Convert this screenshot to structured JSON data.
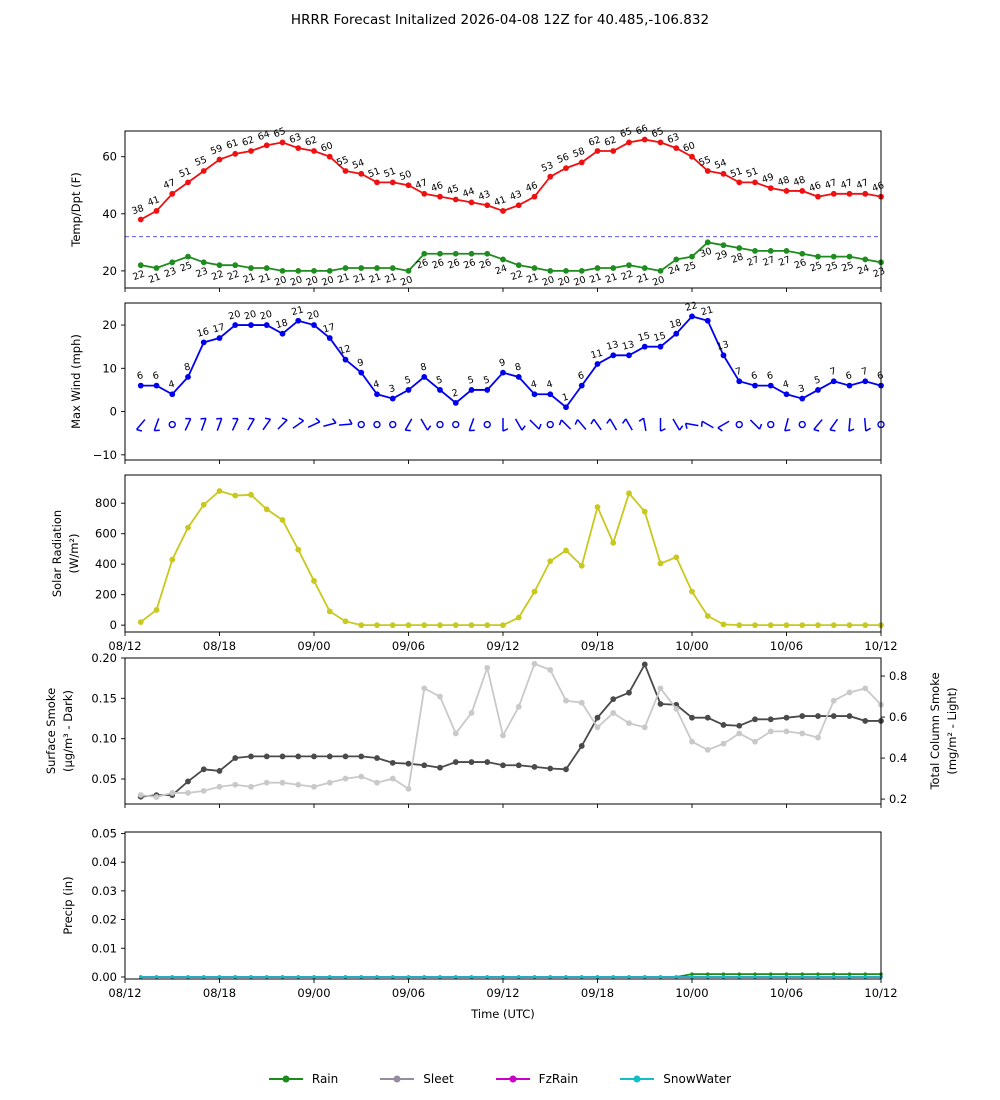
{
  "title": "HRRR Forecast Initalized 2026-04-08 12Z for 40.485,-106.832",
  "time_axis": {
    "n_points": 48,
    "tick_labels": [
      "08/12",
      "08/18",
      "09/00",
      "09/06",
      "09/12",
      "09/18",
      "10/00",
      "10/06",
      "10/12"
    ],
    "axis_label": "Time (UTC)"
  },
  "chart_data": [
    {
      "id": "temp",
      "type": "line",
      "ylabel": [
        "Temp/Dpt (F)"
      ],
      "ylim": [
        14,
        69
      ],
      "ytick_vals": [
        20,
        40,
        60
      ],
      "ytick_labels": [
        "20",
        "40",
        "60"
      ],
      "freezing_line": {
        "value": 32,
        "color": "#5a5af0"
      },
      "series": [
        {
          "name": "temperature",
          "color": "#ee1111",
          "point_labels": true,
          "values": [
            38,
            41,
            47,
            51,
            55,
            59,
            61,
            62,
            64,
            65,
            63,
            62,
            60,
            55,
            54,
            51,
            51,
            50,
            47,
            46,
            45,
            44,
            43,
            41,
            43,
            46,
            53,
            56,
            58,
            62,
            62,
            65,
            66,
            65,
            63,
            60,
            55,
            54,
            51,
            51,
            49,
            48,
            48,
            46,
            47,
            47,
            47,
            46
          ]
        },
        {
          "name": "dewpoint",
          "color": "#1e8c1e",
          "point_labels": true,
          "values": [
            22,
            21,
            23,
            25,
            23,
            22,
            22,
            21,
            21,
            20,
            20,
            20,
            20,
            21,
            21,
            21,
            21,
            20,
            26,
            26,
            26,
            26,
            26,
            24,
            22,
            21,
            20,
            20,
            20,
            21,
            21,
            22,
            21,
            20,
            24,
            25,
            30,
            29,
            28,
            27,
            27,
            27,
            26,
            25,
            25,
            25,
            24,
            23
          ]
        }
      ]
    },
    {
      "id": "wind",
      "type": "line",
      "ylabel": [
        "Max Wind (mph)"
      ],
      "ylim": [
        -11.2,
        25.1
      ],
      "ytick_vals": [
        -10,
        0,
        10,
        20
      ],
      "ytick_labels": [
        "−10",
        "0",
        "10",
        "20"
      ],
      "series": [
        {
          "name": "max_wind",
          "color": "#0000ee",
          "point_labels": true,
          "values": [
            6,
            6,
            4,
            8,
            16,
            17,
            20,
            20,
            20,
            18,
            21,
            20,
            17,
            12,
            9,
            4,
            3,
            5,
            8,
            5,
            2,
            5,
            5,
            9,
            8,
            4,
            4,
            1,
            6,
            11,
            13,
            13,
            15,
            15,
            18,
            22,
            21,
            13,
            7,
            6,
            6,
            4,
            3,
            5,
            7,
            6,
            7,
            6
          ]
        }
      ],
      "barbs": {
        "y": -3,
        "color": "#0000ee",
        "items": [
          {
            "t": "b",
            "a": 230
          },
          {
            "t": "b",
            "a": 250
          },
          {
            "t": "c"
          },
          {
            "t": "b",
            "a": 65
          },
          {
            "t": "b",
            "a": 70
          },
          {
            "t": "b",
            "a": 70
          },
          {
            "t": "b",
            "a": 65
          },
          {
            "t": "b",
            "a": 60
          },
          {
            "t": "b",
            "a": 55
          },
          {
            "t": "b",
            "a": 45
          },
          {
            "t": "b",
            "a": 35
          },
          {
            "t": "b",
            "a": 25
          },
          {
            "t": "b",
            "a": 15
          },
          {
            "t": "b",
            "a": 5
          },
          {
            "t": "c"
          },
          {
            "t": "c"
          },
          {
            "t": "c"
          },
          {
            "t": "b",
            "a": 240
          },
          {
            "t": "b",
            "a": 300
          },
          {
            "t": "c"
          },
          {
            "t": "c"
          },
          {
            "t": "b",
            "a": 250
          },
          {
            "t": "c"
          },
          {
            "t": "b",
            "a": 270
          },
          {
            "t": "b",
            "a": 300
          },
          {
            "t": "b",
            "a": 315
          },
          {
            "t": "c"
          },
          {
            "t": "b",
            "a": 135
          },
          {
            "t": "b",
            "a": 130
          },
          {
            "t": "b",
            "a": 125
          },
          {
            "t": "b",
            "a": 120
          },
          {
            "t": "b",
            "a": 120
          },
          {
            "t": "b",
            "a": 100
          },
          {
            "t": "b",
            "a": 270
          },
          {
            "t": "b",
            "a": 300
          },
          {
            "t": "b",
            "a": 170
          },
          {
            "t": "b",
            "a": 150
          },
          {
            "t": "b",
            "a": 210
          },
          {
            "t": "c"
          },
          {
            "t": "b",
            "a": 315
          },
          {
            "t": "c"
          },
          {
            "t": "b",
            "a": 255
          },
          {
            "t": "c"
          },
          {
            "t": "b",
            "a": 230
          },
          {
            "t": "b",
            "a": 235
          },
          {
            "t": "b",
            "a": 265
          },
          {
            "t": "b",
            "a": 275
          },
          {
            "t": "c"
          }
        ]
      }
    },
    {
      "id": "solar",
      "type": "line",
      "ylabel": [
        "Solar Radiation",
        "(W/m²)"
      ],
      "ylim": [
        -45,
        985
      ],
      "ytick_vals": [
        0,
        200,
        400,
        600,
        800
      ],
      "ytick_labels": [
        "0",
        "200",
        "400",
        "600",
        "800"
      ],
      "show_xtick_labels": true,
      "series": [
        {
          "name": "solar_radiation",
          "color": "#c8c81e",
          "values": [
            20,
            100,
            430,
            640,
            790,
            880,
            850,
            855,
            760,
            690,
            495,
            290,
            90,
            25,
            0,
            0,
            0,
            0,
            0,
            0,
            0,
            0,
            0,
            0,
            50,
            220,
            420,
            490,
            390,
            775,
            540,
            865,
            745,
            405,
            445,
            220,
            60,
            5,
            0,
            0,
            0,
            0,
            0,
            0,
            0,
            0,
            0,
            0
          ]
        }
      ]
    },
    {
      "id": "smoke",
      "type": "line",
      "ylabel": [
        "Surface Smoke",
        "(µg/m³ - Dark)"
      ],
      "ylabel_right": [
        "Total Column Smoke",
        "(mg/m² - Light)"
      ],
      "ylim": [
        0.019,
        0.2
      ],
      "ytick_vals": [
        0.05,
        0.1,
        0.15,
        0.2
      ],
      "ytick_labels": [
        "0.05",
        "0.10",
        "0.15",
        "0.20"
      ],
      "ylim_right": [
        0.176,
        0.888
      ],
      "ytick_vals_right": [
        0.2,
        0.4,
        0.6,
        0.8
      ],
      "ytick_labels_right": [
        "0.2",
        "0.4",
        "0.6",
        "0.8"
      ],
      "series": [
        {
          "name": "surface_smoke",
          "color": "#4a4a4a",
          "values": [
            0.028,
            0.03,
            0.03,
            0.047,
            0.062,
            0.06,
            0.076,
            0.078,
            0.078,
            0.078,
            0.078,
            0.078,
            0.078,
            0.078,
            0.078,
            0.076,
            0.07,
            0.069,
            0.067,
            0.064,
            0.071,
            0.071,
            0.071,
            0.067,
            0.067,
            0.065,
            0.063,
            0.062,
            0.091,
            0.126,
            0.149,
            0.157,
            0.192,
            0.143,
            0.142,
            0.126,
            0.126,
            0.117,
            0.116,
            0.124,
            0.124,
            0.126,
            0.128,
            0.128,
            0.128,
            0.128,
            0.122,
            0.122
          ]
        },
        {
          "name": "total_column_smoke",
          "color": "#c9c9c9",
          "axis": "right",
          "values": [
            0.22,
            0.21,
            0.23,
            0.23,
            0.24,
            0.26,
            0.27,
            0.26,
            0.28,
            0.28,
            0.27,
            0.26,
            0.28,
            0.3,
            0.31,
            0.28,
            0.3,
            0.25,
            0.74,
            0.7,
            0.52,
            0.62,
            0.84,
            0.51,
            0.65,
            0.86,
            0.83,
            0.68,
            0.67,
            0.55,
            0.62,
            0.57,
            0.55,
            0.74,
            0.64,
            0.48,
            0.44,
            0.47,
            0.52,
            0.48,
            0.53,
            0.53,
            0.52,
            0.5,
            0.68,
            0.72,
            0.74,
            0.66
          ]
        }
      ]
    },
    {
      "id": "precip",
      "type": "line",
      "ylabel": [
        "Precip (in)"
      ],
      "ylim": [
        -0.0007,
        0.0505
      ],
      "ytick_vals": [
        0,
        0.01,
        0.02,
        0.03,
        0.04,
        0.05
      ],
      "ytick_labels": [
        "0.00",
        "0.01",
        "0.02",
        "0.03",
        "0.04",
        "0.05"
      ],
      "show_xtick_labels": true,
      "show_xlabel": true,
      "series": [
        {
          "name": "rain",
          "color": "#1a8c1a",
          "values": [
            0,
            0,
            0,
            0,
            0,
            0,
            0,
            0,
            0,
            0,
            0,
            0,
            0,
            0,
            0,
            0,
            0,
            0,
            0,
            0,
            0,
            0,
            0,
            0,
            0,
            0,
            0,
            0,
            0,
            0,
            0,
            0,
            0,
            0,
            0,
            0.001,
            0.001,
            0.001,
            0.001,
            0.001,
            0.001,
            0.001,
            0.001,
            0.001,
            0.001,
            0.001,
            0.001,
            0.001
          ]
        },
        {
          "name": "sleet",
          "color": "#968ca0",
          "values_all_zero": true
        },
        {
          "name": "fzrain",
          "color": "#c800c8",
          "values_all_zero": true
        },
        {
          "name": "snowwater",
          "color": "#14bec8",
          "values_all_zero": true
        }
      ]
    }
  ],
  "legend": {
    "items": [
      {
        "label": "Rain",
        "color": "#1a8c1a"
      },
      {
        "label": "Sleet",
        "color": "#968ca0"
      },
      {
        "label": "FzRain",
        "color": "#c800c8"
      },
      {
        "label": "SnowWater",
        "color": "#14bec8"
      }
    ]
  }
}
